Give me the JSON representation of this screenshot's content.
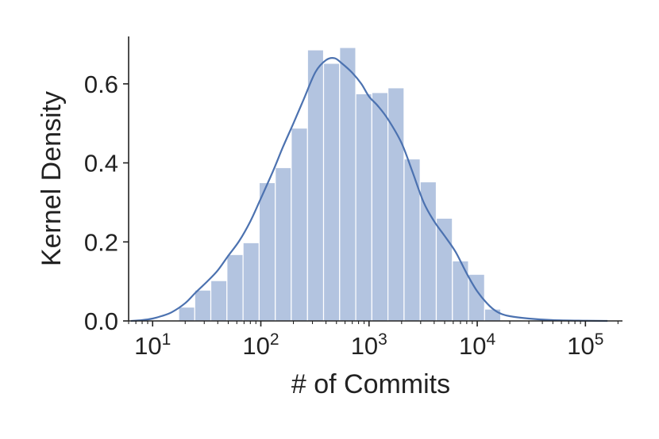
{
  "chart_data": {
    "type": "histogram",
    "xlabel": "# of Commits",
    "ylabel": "Kernel Density",
    "x_scale": "log",
    "xlim": [
      6,
      220000
    ],
    "ylim": [
      0,
      0.72
    ],
    "x_ticks": [
      {
        "value": 10,
        "base": "10",
        "exp": "1"
      },
      {
        "value": 100,
        "base": "10",
        "exp": "2"
      },
      {
        "value": 1000,
        "base": "10",
        "exp": "3"
      },
      {
        "value": 10000,
        "base": "10",
        "exp": "4"
      },
      {
        "value": 100000,
        "base": "10",
        "exp": "5"
      }
    ],
    "y_ticks": [
      {
        "value": 0.0,
        "label": "0.0"
      },
      {
        "value": 0.2,
        "label": "0.2"
      },
      {
        "value": 0.4,
        "label": "0.4"
      },
      {
        "value": 0.6,
        "label": "0.6"
      }
    ],
    "bar_color": "#b3c4e0",
    "line_color": "#4c72b0",
    "bins": [
      {
        "x0": 17.4,
        "x1": 24.5,
        "density": 0.035
      },
      {
        "x0": 24.5,
        "x1": 34.5,
        "density": 0.078
      },
      {
        "x0": 34.5,
        "x1": 48.6,
        "density": 0.102
      },
      {
        "x0": 48.6,
        "x1": 68.5,
        "density": 0.168
      },
      {
        "x0": 68.5,
        "x1": 96.5,
        "density": 0.198
      },
      {
        "x0": 96.5,
        "x1": 136,
        "density": 0.35
      },
      {
        "x0": 136,
        "x1": 191,
        "density": 0.388
      },
      {
        "x0": 191,
        "x1": 270,
        "density": 0.488
      },
      {
        "x0": 270,
        "x1": 380,
        "density": 0.686
      },
      {
        "x0": 380,
        "x1": 535,
        "density": 0.652
      },
      {
        "x0": 535,
        "x1": 754,
        "density": 0.692
      },
      {
        "x0": 754,
        "x1": 1062,
        "density": 0.575
      },
      {
        "x0": 1062,
        "x1": 1496,
        "density": 0.578
      },
      {
        "x0": 1496,
        "x1": 2108,
        "density": 0.59
      },
      {
        "x0": 2108,
        "x1": 2970,
        "density": 0.41
      },
      {
        "x0": 2970,
        "x1": 4184,
        "density": 0.352
      },
      {
        "x0": 4184,
        "x1": 5895,
        "density": 0.26
      },
      {
        "x0": 5895,
        "x1": 8305,
        "density": 0.152
      },
      {
        "x0": 8305,
        "x1": 11700,
        "density": 0.118
      },
      {
        "x0": 11700,
        "x1": 16500,
        "density": 0.03
      }
    ],
    "kde": {
      "x": [
        6.3,
        8,
        10,
        12,
        15,
        20,
        25,
        32,
        40,
        50,
        63,
        80,
        100,
        130,
        160,
        200,
        250,
        320,
        400,
        480,
        560,
        700,
        850,
        1000,
        1200,
        1500,
        2000,
        2500,
        3200,
        4000,
        5000,
        6300,
        8000,
        10000,
        13000,
        16000,
        20000,
        30000,
        50000,
        100000,
        160000
      ],
      "y": [
        0.0,
        0.002,
        0.006,
        0.012,
        0.022,
        0.045,
        0.072,
        0.1,
        0.128,
        0.165,
        0.202,
        0.252,
        0.31,
        0.38,
        0.44,
        0.5,
        0.562,
        0.63,
        0.66,
        0.665,
        0.652,
        0.628,
        0.6,
        0.568,
        0.545,
        0.51,
        0.45,
        0.38,
        0.3,
        0.252,
        0.215,
        0.175,
        0.12,
        0.075,
        0.038,
        0.02,
        0.012,
        0.006,
        0.002,
        0.0005,
        0.0
      ]
    }
  }
}
